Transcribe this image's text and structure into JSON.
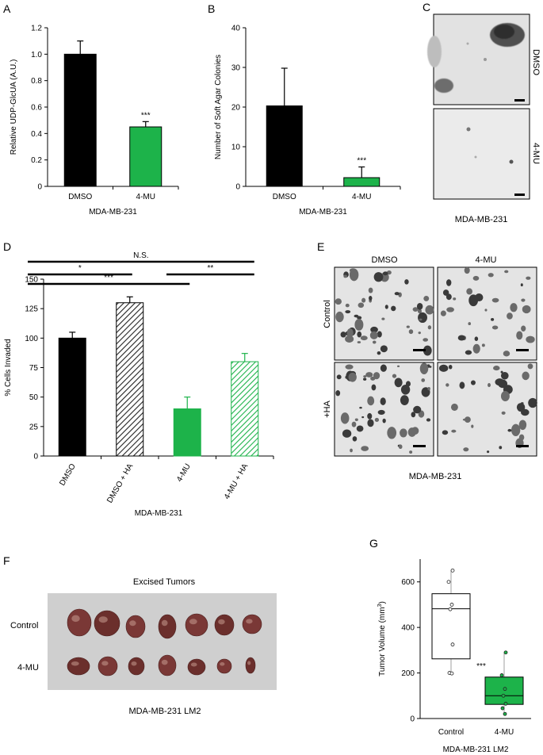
{
  "colors": {
    "black": "#000000",
    "green": "#1db34a",
    "gray_bg": "#cfcfcf",
    "tumor": "#6b2f2c"
  },
  "panels": {
    "A": "A",
    "B": "B",
    "C": "C",
    "D": "D",
    "E": "E",
    "F": "F",
    "G": "G"
  },
  "chart_data": [
    {
      "id": "A",
      "type": "bar",
      "categories": [
        "DMSO",
        "4-MU"
      ],
      "values": [
        1.0,
        0.45
      ],
      "errors": [
        0.1,
        0.04
      ],
      "colors": [
        "#000000",
        "#1db34a"
      ],
      "significance": [
        "",
        "***"
      ],
      "ylabel": "Relative UDP-GlcUA (A.U.)",
      "xlabel": "MDA-MB-231",
      "ylim": [
        0,
        1.2
      ],
      "yticks": [
        "0",
        "0.2",
        "0.4",
        "0.6",
        "0.8",
        "1.0",
        "1.2"
      ]
    },
    {
      "id": "B",
      "type": "bar",
      "categories": [
        "DMSO",
        "4-MU"
      ],
      "values": [
        20.3,
        2.2
      ],
      "errors": [
        9.5,
        2.7
      ],
      "colors": [
        "#000000",
        "#1db34a"
      ],
      "significance": [
        "",
        "***"
      ],
      "ylabel": "Number of Soft Agar Colonies",
      "xlabel": "MDA-MB-231",
      "ylim": [
        0,
        40
      ],
      "yticks": [
        "0",
        "10",
        "20",
        "30",
        "40"
      ]
    },
    {
      "id": "D",
      "type": "bar",
      "categories": [
        "DMSO",
        "DMSO + HA",
        "4-MU",
        "4-MU + HA"
      ],
      "values": [
        100,
        130,
        40,
        80
      ],
      "errors": [
        5,
        5,
        10,
        7
      ],
      "fills": [
        "solid-black",
        "hatch-black",
        "solid-green",
        "hatch-green"
      ],
      "ylabel": "% Cells Invaded",
      "xlabel": "MDA-MB-231",
      "ylim": [
        0,
        150
      ],
      "yticks": [
        "0",
        "25",
        "50",
        "75",
        "100",
        "125",
        "150"
      ],
      "brackets": [
        {
          "from": 0,
          "to": 3,
          "label": "N.S."
        },
        {
          "from": 0,
          "to": 1,
          "label": "*"
        },
        {
          "from": 0,
          "to": 2,
          "label": "***"
        },
        {
          "from": 2,
          "to": 3,
          "label": "**"
        }
      ]
    },
    {
      "id": "G",
      "type": "box",
      "categories": [
        "Control",
        "4-MU"
      ],
      "boxes": [
        {
          "q1": 262,
          "median": 482,
          "q3": 548,
          "min": 200,
          "max": 650,
          "color": "#ffffff",
          "points": [
            650,
            600,
            500,
            480,
            325,
            200,
            198
          ]
        },
        {
          "q1": 62,
          "median": 100,
          "q3": 182,
          "min": 20,
          "max": 290,
          "color": "#1db34a",
          "points": [
            290,
            190,
            130,
            100,
            65,
            45,
            20
          ]
        }
      ],
      "significance": [
        "",
        "***"
      ],
      "ylabel": "Tumor Volume (mm",
      "ylabel_sup": "3",
      "ylabel_end": ")",
      "xlabel": "MDA-MB-231 LM2",
      "ylim": [
        0,
        700
      ],
      "yticks": [
        "0",
        "200",
        "400",
        "600"
      ]
    }
  ],
  "panel_c": {
    "rows": [
      "DMSO",
      "4-MU"
    ],
    "caption": "MDA-MB-231"
  },
  "panel_e": {
    "cols": [
      "DMSO",
      "4-MU"
    ],
    "rows": [
      "Control",
      "+HA"
    ],
    "caption": "MDA-MB-231"
  },
  "panel_f": {
    "title": "Excised Tumors",
    "rows": [
      "Control",
      "4-MU"
    ],
    "caption": "MDA-MB-231 LM2"
  }
}
